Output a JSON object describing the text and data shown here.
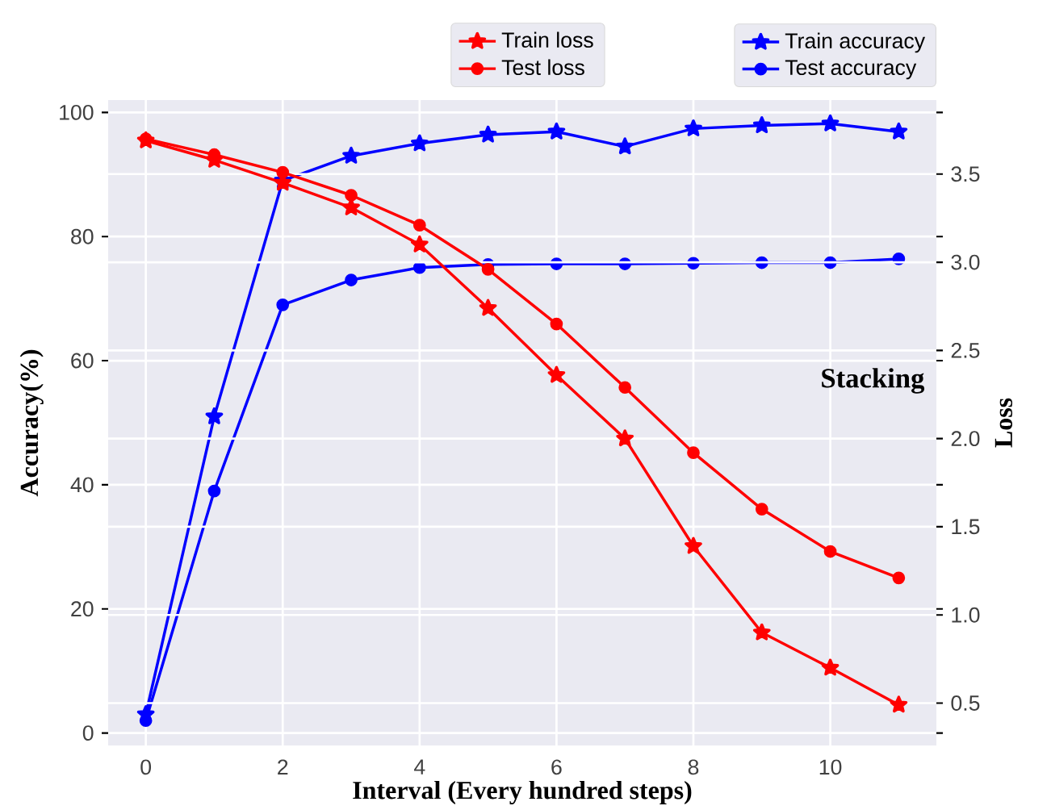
{
  "chart_data": {
    "type": "line",
    "xlabel": "Interval (Every hundred steps)",
    "ylabel": "Accuracy(%)",
    "y2label": "Loss",
    "x": [
      0,
      1,
      2,
      3,
      4,
      5,
      6,
      7,
      8,
      9,
      10,
      11
    ],
    "series": [
      {
        "name": "Train loss",
        "color": "#ff0000",
        "marker": "star",
        "axis": "y2",
        "values": [
          3.69,
          3.58,
          3.45,
          3.31,
          3.1,
          2.74,
          2.36,
          2.0,
          1.39,
          0.9,
          0.7,
          0.49
        ]
      },
      {
        "name": "Test loss",
        "color": "#ff0000",
        "marker": "circle",
        "axis": "y2",
        "values": [
          3.7,
          3.61,
          3.51,
          3.38,
          3.21,
          2.96,
          2.65,
          2.29,
          1.92,
          1.6,
          1.36,
          1.21
        ]
      },
      {
        "name": "Train accuracy",
        "color": "#0000ff",
        "marker": "star",
        "values": [
          3,
          51,
          89,
          93,
          95,
          96.4,
          96.9,
          94.5,
          97.4,
          97.9,
          98.2,
          96.9
        ]
      },
      {
        "name": "Test accuracy",
        "color": "#0000ff",
        "marker": "circle",
        "values": [
          2,
          39,
          69,
          73,
          75,
          75.5,
          75.6,
          75.6,
          75.7,
          75.8,
          75.8,
          76.4
        ]
      }
    ],
    "xlim": [
      -0.55,
      11.55
    ],
    "xticks": [
      0,
      2,
      4,
      6,
      8,
      10
    ],
    "ylim": [
      -2,
      102
    ],
    "yticks": [
      0,
      20,
      40,
      60,
      80,
      100
    ],
    "y2lim": [
      0.26,
      3.92
    ],
    "y2ticks": [
      0.5,
      {
        "value": 1.0,
        "label": "1.0"
      },
      1.5,
      {
        "value": 2.0,
        "label": "2.0"
      },
      2.5,
      {
        "value": 3.0,
        "label": "3.0"
      },
      3.5
    ],
    "annotations": [
      "Stacking"
    ],
    "grid": true,
    "legend": "top",
    "line_style": "solid"
  }
}
